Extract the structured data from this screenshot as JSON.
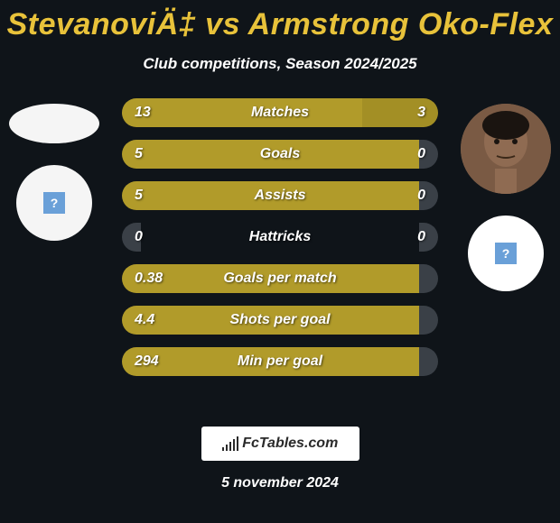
{
  "title": "StevanoviÄ‡ vs Armstrong Oko-Flex",
  "subtitle": "Club competitions, Season 2024/2025",
  "date": "5 november 2024",
  "logo_text": "FcTables.com",
  "colors": {
    "accent": "#b19b2a",
    "accent_light": "#a38f25",
    "neutral_bar": "#3a4047",
    "background": "#0f1419",
    "title_color": "#e8c23a",
    "badge_icon": "#6aa0d8"
  },
  "rows": [
    {
      "label": "Matches",
      "left_val": "13",
      "right_val": "3",
      "left_pct": 76,
      "right_pct": 24,
      "left_color": "#b19b2a",
      "right_color": "#a38f25"
    },
    {
      "label": "Goals",
      "left_val": "5",
      "right_val": "0",
      "left_pct": 94,
      "right_pct": 6,
      "left_color": "#b19b2a",
      "right_color": "#3a4047"
    },
    {
      "label": "Assists",
      "left_val": "5",
      "right_val": "0",
      "left_pct": 94,
      "right_pct": 6,
      "left_color": "#b19b2a",
      "right_color": "#3a4047"
    },
    {
      "label": "Hattricks",
      "left_val": "0",
      "right_val": "0",
      "left_pct": 6,
      "right_pct": 6,
      "left_color": "#3a4047",
      "right_color": "#3a4047"
    },
    {
      "label": "Goals per match",
      "left_val": "0.38",
      "right_val": "",
      "left_pct": 94,
      "right_pct": 6,
      "left_color": "#b19b2a",
      "right_color": "#3a4047"
    },
    {
      "label": "Shots per goal",
      "left_val": "4.4",
      "right_val": "",
      "left_pct": 94,
      "right_pct": 6,
      "left_color": "#b19b2a",
      "right_color": "#3a4047"
    },
    {
      "label": "Min per goal",
      "left_val": "294",
      "right_val": "",
      "left_pct": 94,
      "right_pct": 6,
      "left_color": "#b19b2a",
      "right_color": "#3a4047"
    }
  ],
  "badge_icon_glyph": "?"
}
